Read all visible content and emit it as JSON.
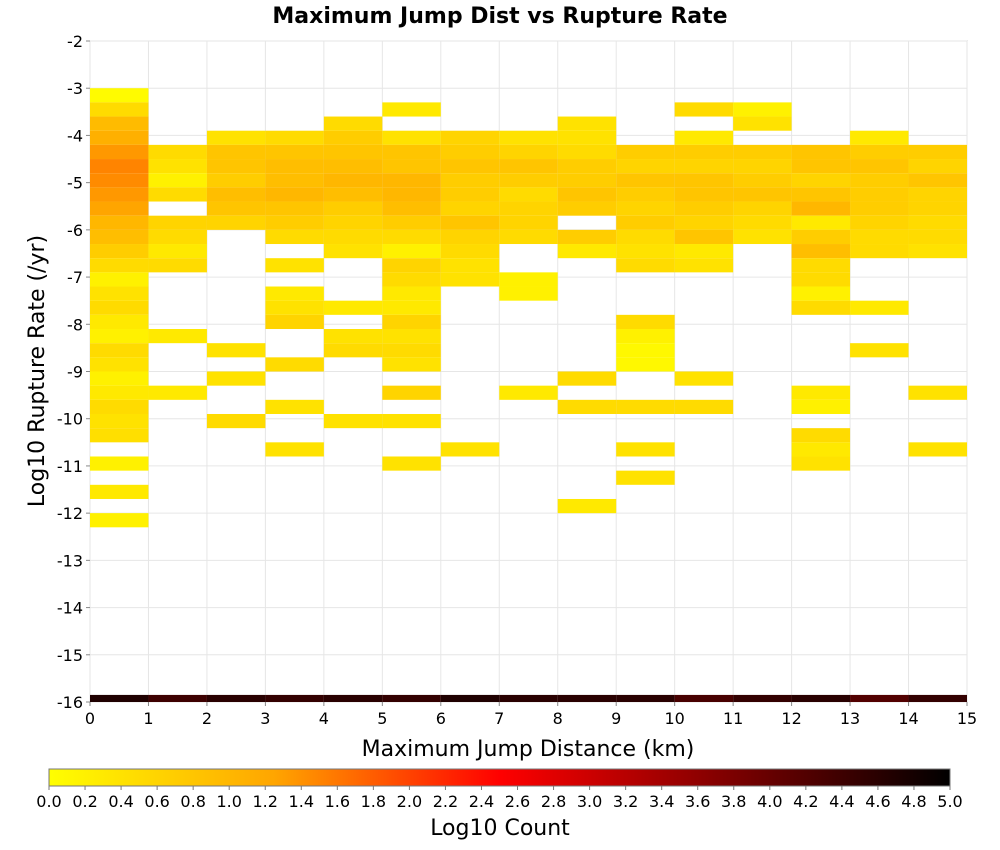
{
  "chart_data": {
    "type": "heatmap",
    "title": "Maximum Jump Dist vs Rupture Rate",
    "xlabel": "Maximum Jump Distance (km)",
    "ylabel": "Log10 Rupture Rate (/yr)",
    "xlim": [
      0,
      15
    ],
    "ylim": [
      -16,
      -2
    ],
    "x_ticks": [
      0,
      1,
      2,
      3,
      4,
      5,
      6,
      7,
      8,
      9,
      10,
      11,
      12,
      13,
      14,
      15
    ],
    "y_ticks": [
      -2,
      -3,
      -4,
      -5,
      -6,
      -7,
      -8,
      -9,
      -10,
      -11,
      -12,
      -13,
      -14,
      -15,
      -16
    ],
    "x_bin_width": 1,
    "y_bin_width": 0.3,
    "grid": true,
    "colorbar": {
      "label": "Log10 Count",
      "range": [
        0,
        5
      ],
      "placement": "bottom",
      "ticks": [
        "0.0",
        "0.2",
        "0.4",
        "0.6",
        "0.8",
        "1.0",
        "1.2",
        "1.4",
        "1.6",
        "1.8",
        "2.0",
        "2.2",
        "2.4",
        "2.6",
        "2.8",
        "3.0",
        "3.2",
        "3.4",
        "3.6",
        "3.8",
        "4.0",
        "4.2",
        "4.4",
        "4.6",
        "4.8",
        "5.0"
      ],
      "colors": [
        "#ffff00",
        "#ffa500",
        "#ff0000",
        "#800000",
        "#000000"
      ]
    },
    "cells": [
      {
        "x": 0,
        "y": -3.15,
        "v": 0.05
      },
      {
        "x": 0,
        "y": -3.45,
        "v": 0.5
      },
      {
        "x": 0,
        "y": -3.75,
        "v": 0.95
      },
      {
        "x": 0,
        "y": -4.05,
        "v": 1.1
      },
      {
        "x": 0,
        "y": -4.35,
        "v": 1.35
      },
      {
        "x": 0,
        "y": -4.65,
        "v": 1.5
      },
      {
        "x": 0,
        "y": -4.95,
        "v": 1.45
      },
      {
        "x": 0,
        "y": -5.25,
        "v": 1.35
      },
      {
        "x": 0,
        "y": -5.55,
        "v": 1.25
      },
      {
        "x": 0,
        "y": -5.85,
        "v": 1.0
      },
      {
        "x": 0,
        "y": -6.15,
        "v": 0.9
      },
      {
        "x": 0,
        "y": -6.45,
        "v": 0.7
      },
      {
        "x": 0,
        "y": -6.75,
        "v": 0.5
      },
      {
        "x": 0,
        "y": -7.05,
        "v": 0.2
      },
      {
        "x": 0,
        "y": -7.35,
        "v": 0.4
      },
      {
        "x": 0,
        "y": -7.65,
        "v": 0.5
      },
      {
        "x": 0,
        "y": -7.95,
        "v": 0.3
      },
      {
        "x": 0,
        "y": -8.25,
        "v": 0.2
      },
      {
        "x": 0,
        "y": -8.55,
        "v": 0.5
      },
      {
        "x": 0,
        "y": -8.85,
        "v": 0.4
      },
      {
        "x": 0,
        "y": -9.15,
        "v": 0.2
      },
      {
        "x": 0,
        "y": -9.45,
        "v": 0.3
      },
      {
        "x": 0,
        "y": -9.75,
        "v": 0.5
      },
      {
        "x": 0,
        "y": -10.05,
        "v": 0.4
      },
      {
        "x": 0,
        "y": -10.35,
        "v": 0.45
      },
      {
        "x": 0,
        "y": -10.95,
        "v": 0.2
      },
      {
        "x": 0,
        "y": -11.55,
        "v": 0.3
      },
      {
        "x": 0,
        "y": -12.15,
        "v": 0.2
      },
      {
        "x": 1,
        "y": -4.35,
        "v": 0.5
      },
      {
        "x": 1,
        "y": -4.65,
        "v": 0.4
      },
      {
        "x": 1,
        "y": -4.95,
        "v": 0.2
      },
      {
        "x": 1,
        "y": -5.25,
        "v": 0.5
      },
      {
        "x": 1,
        "y": -5.85,
        "v": 0.6
      },
      {
        "x": 1,
        "y": -6.15,
        "v": 0.5
      },
      {
        "x": 1,
        "y": -6.45,
        "v": 0.3
      },
      {
        "x": 1,
        "y": -6.75,
        "v": 0.5
      },
      {
        "x": 1,
        "y": -8.25,
        "v": 0.3
      },
      {
        "x": 1,
        "y": -9.45,
        "v": 0.3
      },
      {
        "x": 2,
        "y": -4.05,
        "v": 0.4
      },
      {
        "x": 2,
        "y": -4.35,
        "v": 0.8
      },
      {
        "x": 2,
        "y": -4.65,
        "v": 0.8
      },
      {
        "x": 2,
        "y": -4.95,
        "v": 0.7
      },
      {
        "x": 2,
        "y": -5.25,
        "v": 0.9
      },
      {
        "x": 2,
        "y": -5.55,
        "v": 0.8
      },
      {
        "x": 2,
        "y": -5.85,
        "v": 0.6
      },
      {
        "x": 2,
        "y": -8.55,
        "v": 0.4
      },
      {
        "x": 2,
        "y": -9.15,
        "v": 0.4
      },
      {
        "x": 2,
        "y": -10.05,
        "v": 0.5
      },
      {
        "x": 3,
        "y": -4.05,
        "v": 0.5
      },
      {
        "x": 3,
        "y": -4.35,
        "v": 0.8
      },
      {
        "x": 3,
        "y": -4.65,
        "v": 0.9
      },
      {
        "x": 3,
        "y": -4.95,
        "v": 0.9
      },
      {
        "x": 3,
        "y": -5.25,
        "v": 1.0
      },
      {
        "x": 3,
        "y": -5.55,
        "v": 0.8
      },
      {
        "x": 3,
        "y": -5.85,
        "v": 0.7
      },
      {
        "x": 3,
        "y": -6.15,
        "v": 0.5
      },
      {
        "x": 3,
        "y": -6.75,
        "v": 0.4
      },
      {
        "x": 3,
        "y": -7.35,
        "v": 0.3
      },
      {
        "x": 3,
        "y": -7.65,
        "v": 0.4
      },
      {
        "x": 3,
        "y": -7.95,
        "v": 0.6
      },
      {
        "x": 3,
        "y": -8.85,
        "v": 0.5
      },
      {
        "x": 3,
        "y": -9.75,
        "v": 0.4
      },
      {
        "x": 3,
        "y": -10.65,
        "v": 0.4
      },
      {
        "x": 4,
        "y": -3.75,
        "v": 0.5
      },
      {
        "x": 4,
        "y": -4.05,
        "v": 0.7
      },
      {
        "x": 4,
        "y": -4.35,
        "v": 0.8
      },
      {
        "x": 4,
        "y": -4.65,
        "v": 0.9
      },
      {
        "x": 4,
        "y": -4.95,
        "v": 1.0
      },
      {
        "x": 4,
        "y": -5.25,
        "v": 0.9
      },
      {
        "x": 4,
        "y": -5.55,
        "v": 0.7
      },
      {
        "x": 4,
        "y": -5.85,
        "v": 0.6
      },
      {
        "x": 4,
        "y": -6.15,
        "v": 0.5
      },
      {
        "x": 4,
        "y": -6.45,
        "v": 0.4
      },
      {
        "x": 4,
        "y": -7.65,
        "v": 0.3
      },
      {
        "x": 4,
        "y": -8.25,
        "v": 0.4
      },
      {
        "x": 4,
        "y": -8.55,
        "v": 0.5
      },
      {
        "x": 4,
        "y": -10.05,
        "v": 0.4
      },
      {
        "x": 5,
        "y": -3.45,
        "v": 0.3
      },
      {
        "x": 5,
        "y": -4.05,
        "v": 0.4
      },
      {
        "x": 5,
        "y": -4.35,
        "v": 0.8
      },
      {
        "x": 5,
        "y": -4.65,
        "v": 0.8
      },
      {
        "x": 5,
        "y": -4.95,
        "v": 1.0
      },
      {
        "x": 5,
        "y": -5.25,
        "v": 1.0
      },
      {
        "x": 5,
        "y": -5.55,
        "v": 0.9
      },
      {
        "x": 5,
        "y": -5.85,
        "v": 0.7
      },
      {
        "x": 5,
        "y": -6.15,
        "v": 0.5
      },
      {
        "x": 5,
        "y": -6.45,
        "v": 0.2
      },
      {
        "x": 5,
        "y": -6.75,
        "v": 0.6
      },
      {
        "x": 5,
        "y": -7.05,
        "v": 0.5
      },
      {
        "x": 5,
        "y": -7.35,
        "v": 0.3
      },
      {
        "x": 5,
        "y": -7.65,
        "v": 0.3
      },
      {
        "x": 5,
        "y": -7.95,
        "v": 0.6
      },
      {
        "x": 5,
        "y": -8.25,
        "v": 0.4
      },
      {
        "x": 5,
        "y": -8.55,
        "v": 0.5
      },
      {
        "x": 5,
        "y": -8.85,
        "v": 0.4
      },
      {
        "x": 5,
        "y": -9.45,
        "v": 0.6
      },
      {
        "x": 5,
        "y": -10.05,
        "v": 0.4
      },
      {
        "x": 5,
        "y": -10.95,
        "v": 0.4
      },
      {
        "x": 6,
        "y": -4.05,
        "v": 0.6
      },
      {
        "x": 6,
        "y": -4.35,
        "v": 0.7
      },
      {
        "x": 6,
        "y": -4.65,
        "v": 0.8
      },
      {
        "x": 6,
        "y": -4.95,
        "v": 0.7
      },
      {
        "x": 6,
        "y": -5.25,
        "v": 0.7
      },
      {
        "x": 6,
        "y": -5.55,
        "v": 0.6
      },
      {
        "x": 6,
        "y": -5.85,
        "v": 0.8
      },
      {
        "x": 6,
        "y": -6.15,
        "v": 0.6
      },
      {
        "x": 6,
        "y": -6.45,
        "v": 0.5
      },
      {
        "x": 6,
        "y": -6.75,
        "v": 0.4
      },
      {
        "x": 6,
        "y": -7.05,
        "v": 0.4
      },
      {
        "x": 6,
        "y": -10.65,
        "v": 0.4
      },
      {
        "x": 7,
        "y": -4.05,
        "v": 0.4
      },
      {
        "x": 7,
        "y": -4.35,
        "v": 0.6
      },
      {
        "x": 7,
        "y": -4.65,
        "v": 0.8
      },
      {
        "x": 7,
        "y": -4.95,
        "v": 0.7
      },
      {
        "x": 7,
        "y": -5.25,
        "v": 0.5
      },
      {
        "x": 7,
        "y": -5.55,
        "v": 0.6
      },
      {
        "x": 7,
        "y": -5.85,
        "v": 0.6
      },
      {
        "x": 7,
        "y": -6.15,
        "v": 0.5
      },
      {
        "x": 7,
        "y": -7.05,
        "v": 0.2
      },
      {
        "x": 7,
        "y": -7.35,
        "v": 0.2
      },
      {
        "x": 7,
        "y": -9.45,
        "v": 0.3
      },
      {
        "x": 8,
        "y": -3.75,
        "v": 0.4
      },
      {
        "x": 8,
        "y": -4.05,
        "v": 0.4
      },
      {
        "x": 8,
        "y": -4.35,
        "v": 0.5
      },
      {
        "x": 8,
        "y": -4.65,
        "v": 0.7
      },
      {
        "x": 8,
        "y": -4.95,
        "v": 0.7
      },
      {
        "x": 8,
        "y": -5.25,
        "v": 0.8
      },
      {
        "x": 8,
        "y": -5.55,
        "v": 0.7
      },
      {
        "x": 8,
        "y": -6.15,
        "v": 0.7
      },
      {
        "x": 8,
        "y": -6.45,
        "v": 0.3
      },
      {
        "x": 8,
        "y": -9.15,
        "v": 0.5
      },
      {
        "x": 8,
        "y": -9.75,
        "v": 0.5
      },
      {
        "x": 8,
        "y": -11.85,
        "v": 0.3
      },
      {
        "x": 9,
        "y": -4.35,
        "v": 0.7
      },
      {
        "x": 9,
        "y": -4.65,
        "v": 0.6
      },
      {
        "x": 9,
        "y": -4.95,
        "v": 0.8
      },
      {
        "x": 9,
        "y": -5.25,
        "v": 0.7
      },
      {
        "x": 9,
        "y": -5.55,
        "v": 0.6
      },
      {
        "x": 9,
        "y": -5.85,
        "v": 0.7
      },
      {
        "x": 9,
        "y": -6.15,
        "v": 0.5
      },
      {
        "x": 9,
        "y": -6.45,
        "v": 0.4
      },
      {
        "x": 9,
        "y": -6.75,
        "v": 0.5
      },
      {
        "x": 9,
        "y": -7.95,
        "v": 0.5
      },
      {
        "x": 9,
        "y": -8.25,
        "v": 0.2
      },
      {
        "x": 9,
        "y": -8.55,
        "v": 0.1
      },
      {
        "x": 9,
        "y": -8.85,
        "v": 0.1
      },
      {
        "x": 9,
        "y": -9.75,
        "v": 0.5
      },
      {
        "x": 9,
        "y": -10.65,
        "v": 0.4
      },
      {
        "x": 9,
        "y": -11.25,
        "v": 0.4
      },
      {
        "x": 10,
        "y": -3.45,
        "v": 0.5
      },
      {
        "x": 10,
        "y": -4.05,
        "v": 0.3
      },
      {
        "x": 10,
        "y": -4.35,
        "v": 0.7
      },
      {
        "x": 10,
        "y": -4.65,
        "v": 0.6
      },
      {
        "x": 10,
        "y": -4.95,
        "v": 0.8
      },
      {
        "x": 10,
        "y": -5.25,
        "v": 0.8
      },
      {
        "x": 10,
        "y": -5.55,
        "v": 0.7
      },
      {
        "x": 10,
        "y": -5.85,
        "v": 0.6
      },
      {
        "x": 10,
        "y": -6.15,
        "v": 0.8
      },
      {
        "x": 10,
        "y": -6.45,
        "v": 0.3
      },
      {
        "x": 10,
        "y": -6.75,
        "v": 0.4
      },
      {
        "x": 10,
        "y": -9.15,
        "v": 0.4
      },
      {
        "x": 10,
        "y": -9.75,
        "v": 0.5
      },
      {
        "x": 11,
        "y": -3.45,
        "v": 0.2
      },
      {
        "x": 11,
        "y": -3.75,
        "v": 0.4
      },
      {
        "x": 11,
        "y": -4.35,
        "v": 0.7
      },
      {
        "x": 11,
        "y": -4.65,
        "v": 0.6
      },
      {
        "x": 11,
        "y": -4.95,
        "v": 0.7
      },
      {
        "x": 11,
        "y": -5.25,
        "v": 0.8
      },
      {
        "x": 11,
        "y": -5.55,
        "v": 0.6
      },
      {
        "x": 11,
        "y": -5.85,
        "v": 0.5
      },
      {
        "x": 11,
        "y": -6.15,
        "v": 0.4
      },
      {
        "x": 12,
        "y": -4.35,
        "v": 0.8
      },
      {
        "x": 12,
        "y": -4.65,
        "v": 0.8
      },
      {
        "x": 12,
        "y": -4.95,
        "v": 0.6
      },
      {
        "x": 12,
        "y": -5.25,
        "v": 0.8
      },
      {
        "x": 12,
        "y": -5.55,
        "v": 1.0
      },
      {
        "x": 12,
        "y": -5.85,
        "v": 0.3
      },
      {
        "x": 12,
        "y": -6.15,
        "v": 0.7
      },
      {
        "x": 12,
        "y": -6.45,
        "v": 0.9
      },
      {
        "x": 12,
        "y": -6.75,
        "v": 0.5
      },
      {
        "x": 12,
        "y": -7.05,
        "v": 0.5
      },
      {
        "x": 12,
        "y": -7.35,
        "v": 0.2
      },
      {
        "x": 12,
        "y": -7.65,
        "v": 0.5
      },
      {
        "x": 12,
        "y": -9.45,
        "v": 0.3
      },
      {
        "x": 12,
        "y": -9.75,
        "v": 0.2
      },
      {
        "x": 12,
        "y": -10.35,
        "v": 0.5
      },
      {
        "x": 12,
        "y": -10.65,
        "v": 0.3
      },
      {
        "x": 12,
        "y": -10.95,
        "v": 0.4
      },
      {
        "x": 13,
        "y": -4.05,
        "v": 0.3
      },
      {
        "x": 13,
        "y": -4.35,
        "v": 0.7
      },
      {
        "x": 13,
        "y": -4.65,
        "v": 0.8
      },
      {
        "x": 13,
        "y": -4.95,
        "v": 0.7
      },
      {
        "x": 13,
        "y": -5.25,
        "v": 0.7
      },
      {
        "x": 13,
        "y": -5.55,
        "v": 0.7
      },
      {
        "x": 13,
        "y": -5.85,
        "v": 0.6
      },
      {
        "x": 13,
        "y": -6.15,
        "v": 0.5
      },
      {
        "x": 13,
        "y": -6.45,
        "v": 0.5
      },
      {
        "x": 13,
        "y": -7.65,
        "v": 0.3
      },
      {
        "x": 13,
        "y": -8.55,
        "v": 0.4
      },
      {
        "x": 14,
        "y": -4.35,
        "v": 0.7
      },
      {
        "x": 14,
        "y": -4.65,
        "v": 0.6
      },
      {
        "x": 14,
        "y": -4.95,
        "v": 0.8
      },
      {
        "x": 14,
        "y": -5.25,
        "v": 0.6
      },
      {
        "x": 14,
        "y": -5.55,
        "v": 0.6
      },
      {
        "x": 14,
        "y": -5.85,
        "v": 0.5
      },
      {
        "x": 14,
        "y": -6.15,
        "v": 0.5
      },
      {
        "x": 14,
        "y": -6.45,
        "v": 0.4
      },
      {
        "x": 14,
        "y": -9.45,
        "v": 0.4
      },
      {
        "x": 14,
        "y": -10.65,
        "v": 0.4
      }
    ],
    "bottom_row": {
      "y": -16,
      "values": [
        4.7,
        4.4,
        4.6,
        4.5,
        4.6,
        4.5,
        4.7,
        4.6,
        4.6,
        4.6,
        4.3,
        4.5,
        4.6,
        4.2,
        4.5
      ]
    }
  }
}
